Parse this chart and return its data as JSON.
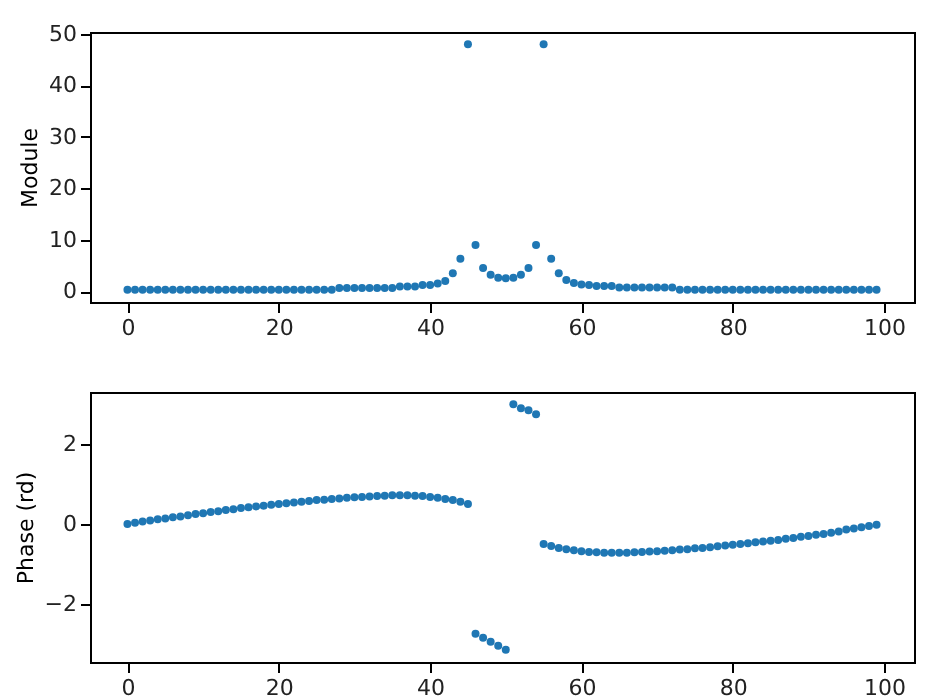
{
  "chart_data": [
    {
      "type": "scatter",
      "ylabel": "Module",
      "marker": "circle",
      "grid": false,
      "x": [
        0,
        1,
        2,
        3,
        4,
        5,
        6,
        7,
        8,
        9,
        10,
        11,
        12,
        13,
        14,
        15,
        16,
        17,
        18,
        19,
        20,
        21,
        22,
        23,
        24,
        25,
        26,
        27,
        28,
        29,
        30,
        31,
        32,
        33,
        34,
        35,
        36,
        37,
        38,
        39,
        40,
        41,
        42,
        43,
        44,
        45,
        46,
        47,
        48,
        49,
        50,
        51,
        52,
        53,
        54,
        55,
        56,
        57,
        58,
        59,
        60,
        61,
        62,
        63,
        64,
        65,
        66,
        67,
        68,
        69,
        70,
        71,
        72,
        73,
        74,
        75,
        76,
        77,
        78,
        79,
        80,
        81,
        82,
        83,
        84,
        85,
        86,
        87,
        88,
        89,
        90,
        91,
        92,
        93,
        94,
        95,
        96,
        97,
        98,
        99
      ],
      "series": [
        {
          "color": "#1f77b4",
          "values": [
            0.3,
            0.3,
            0.3,
            0.3,
            0.3,
            0.3,
            0.3,
            0.3,
            0.3,
            0.3,
            0.3,
            0.3,
            0.3,
            0.3,
            0.3,
            0.3,
            0.3,
            0.3,
            0.3,
            0.3,
            0.3,
            0.3,
            0.3,
            0.3,
            0.3,
            0.3,
            0.3,
            0.3,
            0.6,
            0.6,
            0.6,
            0.6,
            0.6,
            0.6,
            0.6,
            0.6,
            0.9,
            0.9,
            0.9,
            1.2,
            1.2,
            1.5,
            2,
            3.5,
            6.3,
            48,
            9,
            4.5,
            3.2,
            2.6,
            2.5,
            2.6,
            3.2,
            4.5,
            9,
            48,
            6.3,
            3.5,
            2.2,
            1.6,
            1.3,
            1.2,
            1,
            1,
            1,
            0.7,
            0.7,
            0.7,
            0.7,
            0.7,
            0.7,
            0.7,
            0.7,
            0.3,
            0.3,
            0.3,
            0.3,
            0.3,
            0.3,
            0.3,
            0.3,
            0.3,
            0.3,
            0.3,
            0.3,
            0.3,
            0.3,
            0.3,
            0.3,
            0.3,
            0.3,
            0.3,
            0.3,
            0.3,
            0.3,
            0.3,
            0.3,
            0.3,
            0.3,
            0.3
          ]
        }
      ],
      "xlim": [
        -4.95,
        103.95
      ],
      "xticks": [
        0,
        20,
        40,
        60,
        80,
        100
      ],
      "ylim": [
        -2.1,
        50.4
      ],
      "yticks": [
        0,
        10,
        20,
        30,
        40,
        50
      ]
    },
    {
      "type": "scatter",
      "ylabel": "Phase (rd)",
      "marker": "circle",
      "grid": false,
      "x": [
        0,
        1,
        2,
        3,
        4,
        5,
        6,
        7,
        8,
        9,
        10,
        11,
        12,
        13,
        14,
        15,
        16,
        17,
        18,
        19,
        20,
        21,
        22,
        23,
        24,
        25,
        26,
        27,
        28,
        29,
        30,
        31,
        32,
        33,
        34,
        35,
        36,
        37,
        38,
        39,
        40,
        41,
        42,
        43,
        44,
        45,
        46,
        47,
        48,
        49,
        50,
        51,
        52,
        53,
        54,
        55,
        56,
        57,
        58,
        59,
        60,
        61,
        62,
        63,
        64,
        65,
        66,
        67,
        68,
        69,
        70,
        71,
        72,
        73,
        74,
        75,
        76,
        77,
        78,
        79,
        80,
        81,
        82,
        83,
        84,
        85,
        86,
        87,
        88,
        89,
        90,
        91,
        92,
        93,
        94,
        95,
        96,
        97,
        98,
        99
      ],
      "series": [
        {
          "color": "#1f77b4",
          "values": [
            0,
            0.03,
            0.06,
            0.09,
            0.12,
            0.14,
            0.17,
            0.19,
            0.22,
            0.25,
            0.27,
            0.3,
            0.32,
            0.35,
            0.37,
            0.4,
            0.42,
            0.44,
            0.46,
            0.48,
            0.5,
            0.52,
            0.54,
            0.56,
            0.58,
            0.6,
            0.61,
            0.63,
            0.64,
            0.66,
            0.67,
            0.68,
            0.69,
            0.7,
            0.71,
            0.72,
            0.72,
            0.72,
            0.71,
            0.7,
            0.68,
            0.66,
            0.63,
            0.6,
            0.56,
            0.5,
            -2.75,
            -2.85,
            -2.95,
            -3.05,
            -3.15,
            3,
            2.9,
            2.85,
            2.75,
            -0.5,
            -0.55,
            -0.6,
            -0.63,
            -0.66,
            -0.68,
            -0.7,
            -0.71,
            -0.72,
            -0.72,
            -0.72,
            -0.72,
            -0.71,
            -0.7,
            -0.69,
            -0.68,
            -0.67,
            -0.66,
            -0.64,
            -0.63,
            -0.61,
            -0.6,
            -0.58,
            -0.56,
            -0.54,
            -0.52,
            -0.5,
            -0.48,
            -0.46,
            -0.44,
            -0.42,
            -0.4,
            -0.37,
            -0.35,
            -0.32,
            -0.3,
            -0.27,
            -0.25,
            -0.22,
            -0.19,
            -0.14,
            -0.11,
            -0.08,
            -0.05,
            -0.02
          ]
        }
      ],
      "xlim": [
        -4.95,
        103.95
      ],
      "xticks": [
        0,
        20,
        40,
        60,
        80,
        100
      ],
      "ylim": [
        -3.46,
        3.31
      ],
      "yticks": [
        {
          "value": -2,
          "label": "−2"
        },
        0,
        2
      ]
    }
  ]
}
